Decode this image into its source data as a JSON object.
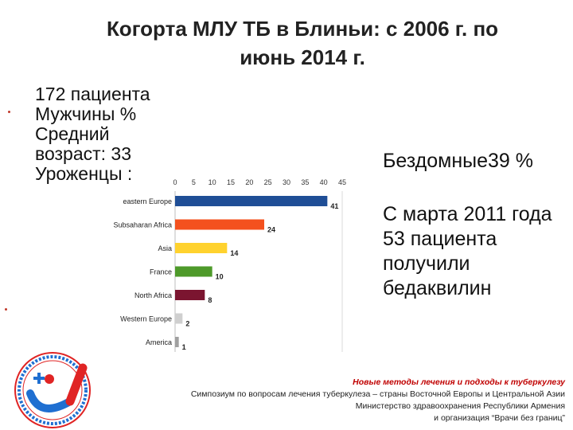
{
  "slide": {
    "title_line1": "Когорта МЛУ ТБ в Блиньи: с 2006 г. по",
    "title_line2": "июнь 2014 г."
  },
  "stats": {
    "patients": "172 пациента",
    "men": "Мужчины %",
    "age_label": "Средний",
    "age_value": "возраст: 33",
    "natives": "Уроженцы :"
  },
  "right": {
    "homeless": "Бездомные39 %",
    "bedaquiline": "С марта 2011 года 53 пациента получили бедаквилин"
  },
  "footer": {
    "line1": "Новые методы лечения и подходы к туберкулезу",
    "line2": "Симпозиум по вопросам лечения туберкулеза – страны Восточной Европы и Центральной Азии",
    "line3": "Министерство здравоохранения Республики Армения",
    "line4": "и организация “Врачи без границ”"
  },
  "colors": {
    "eastern_europe": "#1f4e96",
    "subsaharan_africa": "#f4511e",
    "asia": "#ffd22e",
    "france": "#4e9a2a",
    "north_africa": "#7b1530",
    "western_europe": "#cfcfcf",
    "america": "#a0a0a0",
    "footer_title": "#c00000",
    "logo_red": "#e02424",
    "logo_blue": "#1f6fd1"
  },
  "logo": {
    "icon": "ministry-msf-logo-icon",
    "caption": "Министерство здравоохранения Республики Армения"
  },
  "chart_data": {
    "type": "bar",
    "orientation": "horizontal",
    "categories": [
      "eastern Europe",
      "Subsaharan Africa",
      "Asia",
      "France",
      "North Africa",
      "Western Europe",
      "America"
    ],
    "values": [
      41,
      24,
      14,
      10,
      8,
      2,
      1
    ],
    "xlim": [
      0,
      45
    ],
    "xticks": [
      0,
      5,
      10,
      15,
      20,
      25,
      30,
      35,
      40,
      45
    ],
    "xtick_labels": [
      "0",
      "5",
      "10",
      "15",
      "20",
      "25",
      "30",
      "35",
      "40",
      "45"
    ],
    "data_labels": [
      "41",
      "24",
      "14",
      "10",
      "8",
      "2",
      "1"
    ],
    "axis_position": "top",
    "grid": false,
    "legend": "none",
    "title": "",
    "xlabel": "",
    "ylabel": ""
  }
}
